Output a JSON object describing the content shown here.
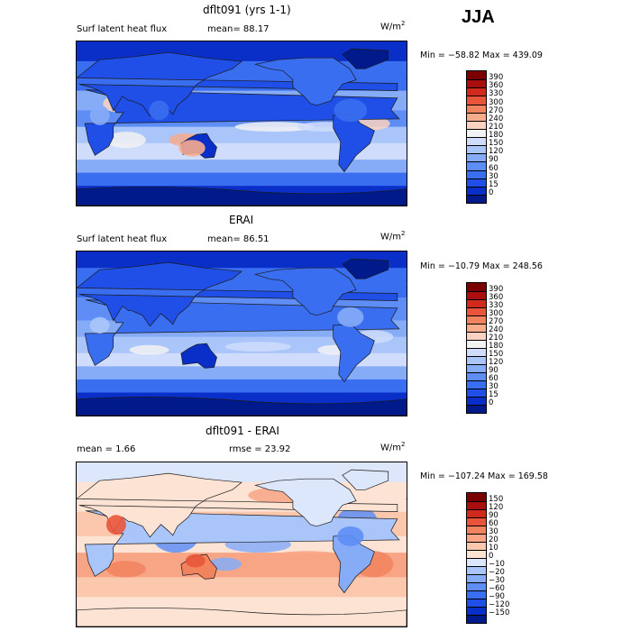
{
  "season": "JJA",
  "units_base": "W/m",
  "units_exp": "2",
  "panels": [
    {
      "title": "dflt091 (yrs 1-1)",
      "variable": "Surf latent heat flux",
      "stat_text": "mean=  88.17",
      "minmax": "Min = −58.82  Max = 439.09"
    },
    {
      "title": "ERAI",
      "variable": "Surf latent heat flux",
      "stat_text": "mean=  86.51",
      "minmax": "Min = −10.79  Max = 248.56"
    },
    {
      "title": "dflt091 - ERAI",
      "mean_text": "mean =    1.66",
      "rmse_text": "rmse =   23.92",
      "minmax": "Min = −107.24  Max = 169.58"
    }
  ],
  "chart_data": [
    {
      "type": "heatmap",
      "title": "dflt091 (yrs 1-1)",
      "subtitle": "Surf latent heat flux",
      "mean": 88.17,
      "min": -58.82,
      "max": 439.09,
      "units": "W/m2",
      "colorbar_levels": [
        0,
        15,
        30,
        60,
        90,
        120,
        150,
        180,
        210,
        240,
        270,
        300,
        330,
        360,
        390
      ],
      "colorbar_colors": [
        "#001a8c",
        "#0a2fc8",
        "#1f4fe6",
        "#3a6ef0",
        "#5e8ef5",
        "#86abf7",
        "#aac5fa",
        "#cfdcfc",
        "#f2f2f2",
        "#fbd2bf",
        "#f7ac8c",
        "#f2835f",
        "#e9553a",
        "#d02a1d",
        "#a80e0e",
        "#7a0000"
      ]
    },
    {
      "type": "heatmap",
      "title": "ERAI",
      "subtitle": "Surf latent heat flux",
      "mean": 86.51,
      "min": -10.79,
      "max": 248.56,
      "units": "W/m2",
      "colorbar_levels": [
        0,
        15,
        30,
        60,
        90,
        120,
        150,
        180,
        210,
        240,
        270,
        300,
        330,
        360,
        390
      ],
      "colorbar_colors": [
        "#001a8c",
        "#0a2fc8",
        "#1f4fe6",
        "#3a6ef0",
        "#5e8ef5",
        "#86abf7",
        "#aac5fa",
        "#cfdcfc",
        "#f2f2f2",
        "#fbd2bf",
        "#f7ac8c",
        "#f2835f",
        "#e9553a",
        "#d02a1d",
        "#a80e0e",
        "#7a0000"
      ]
    },
    {
      "type": "heatmap",
      "title": "dflt091 - ERAI",
      "mean": 1.66,
      "rmse": 23.92,
      "min": -107.24,
      "max": 169.58,
      "units": "W/m2",
      "colorbar_levels": [
        -150,
        -120,
        -90,
        -60,
        -30,
        -20,
        -10,
        0,
        10,
        20,
        30,
        60,
        90,
        120,
        150
      ],
      "colorbar_colors": [
        "#001a8c",
        "#0a2fc8",
        "#1f4fe6",
        "#3a6ef0",
        "#5e8ef5",
        "#86abf7",
        "#aac5fa",
        "#dce7fb",
        "#fde3d4",
        "#fbc7ad",
        "#f7a585",
        "#f2835f",
        "#e9553a",
        "#d02a1d",
        "#a80e0e",
        "#7a0000"
      ]
    }
  ]
}
